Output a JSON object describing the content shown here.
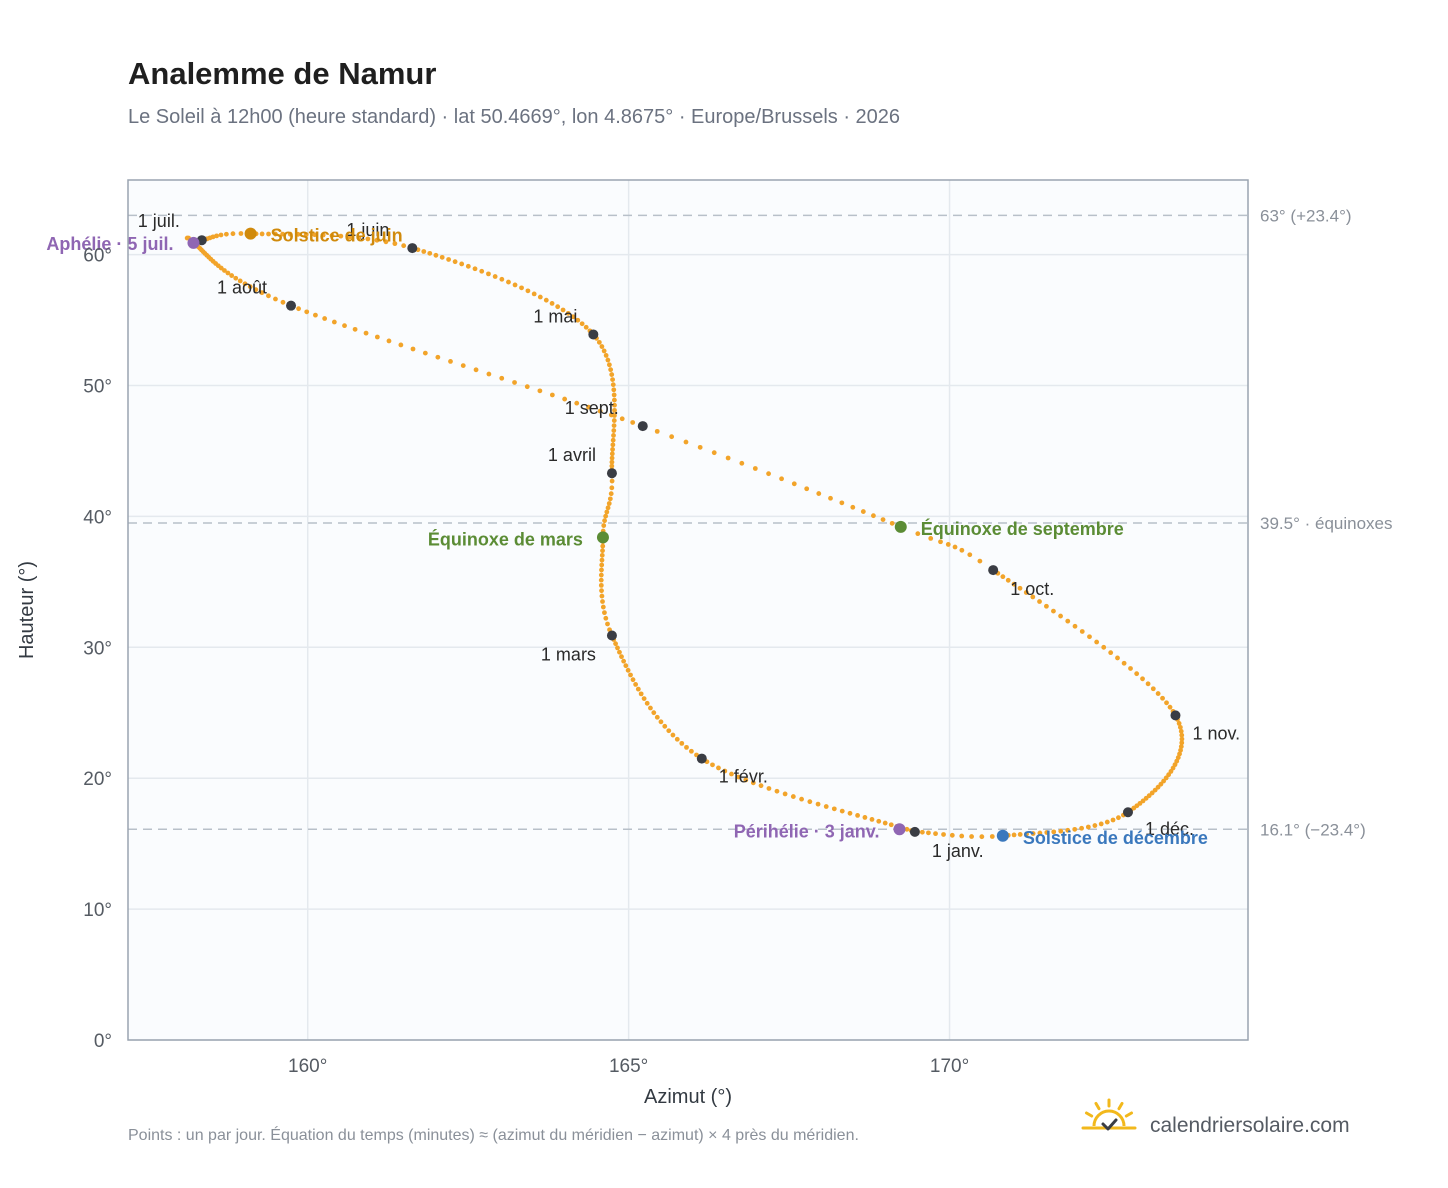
{
  "title": "Analemme de Namur",
  "subtitle": "Le Soleil à 12h00 (heure standard) · lat 50.4669°, lon 4.8675° · Europe/Brussels · 2026",
  "footnote": "Points : un par jour. Équation du temps (minutes) ≈ (azimut du méridien − azimut) × 4 près du méridien.",
  "brand": "calendriersolaire.com",
  "colors": {
    "path": "#f2a42a",
    "month_dot": "#3a3d44",
    "solstice_june": "#d08a0c",
    "solstice_december": "#3a78bd",
    "equinox": "#5b8c35",
    "perihelion_aphelion": "#8f66b3",
    "reference_line": "#b8c0c9",
    "plot_background": "#fafcfe",
    "grid": "#e4e9ee",
    "frame": "#9aa4b0",
    "brand_icon": "#f2b81c"
  },
  "chart_data": {
    "type": "scatter",
    "xlabel": "Azimut (°)",
    "ylabel": "Hauteur (°)",
    "xlim": [
      157.2,
      174.65
    ],
    "ylim": [
      0,
      65.7
    ],
    "x_ticks": [
      {
        "value": 160,
        "label": "160°"
      },
      {
        "value": 165,
        "label": "165°"
      },
      {
        "value": 170,
        "label": "170°"
      }
    ],
    "y_ticks": [
      {
        "value": 0,
        "label": "0°"
      },
      {
        "value": 10,
        "label": "10°"
      },
      {
        "value": 20,
        "label": "20°"
      },
      {
        "value": 30,
        "label": "30°"
      },
      {
        "value": 40,
        "label": "40°"
      },
      {
        "value": 50,
        "label": "50°"
      },
      {
        "value": 60,
        "label": "60°"
      }
    ],
    "grid": true,
    "path_note": "Points : un par jour",
    "daily_path_anchors": [
      {
        "doy": 1,
        "x": 169.46,
        "y": 15.9
      },
      {
        "doy": 32,
        "x": 166.14,
        "y": 21.5
      },
      {
        "doy": 60,
        "x": 164.74,
        "y": 30.9
      },
      {
        "doy": 79,
        "x": 164.6,
        "y": 38.4
      },
      {
        "doy": 91,
        "x": 164.74,
        "y": 43.3
      },
      {
        "doy": 121,
        "x": 164.45,
        "y": 53.9
      },
      {
        "doy": 152,
        "x": 161.63,
        "y": 60.5
      },
      {
        "doy": 172,
        "x": 159.11,
        "y": 61.6
      },
      {
        "doy": 182,
        "x": 158.35,
        "y": 61.1
      },
      {
        "doy": 186,
        "x": 158.22,
        "y": 60.9
      },
      {
        "doy": 213,
        "x": 159.74,
        "y": 56.1
      },
      {
        "doy": 244,
        "x": 165.22,
        "y": 46.9
      },
      {
        "doy": 265,
        "x": 169.24,
        "y": 39.2
      },
      {
        "doy": 274,
        "x": 170.68,
        "y": 35.9
      },
      {
        "doy": 305,
        "x": 173.52,
        "y": 24.8
      },
      {
        "doy": 335,
        "x": 172.78,
        "y": 17.4
      },
      {
        "doy": 355,
        "x": 170.83,
        "y": 15.6
      },
      {
        "doy": 365,
        "x": 169.5,
        "y": 15.9
      }
    ],
    "months": [
      {
        "label": "1 janv.",
        "x": 169.46,
        "y": 15.9
      },
      {
        "label": "1 févr.",
        "x": 166.14,
        "y": 21.5
      },
      {
        "label": "1 mars",
        "x": 164.74,
        "y": 30.9
      },
      {
        "label": "1 avril",
        "x": 164.74,
        "y": 43.3
      },
      {
        "label": "1 mai",
        "x": 164.45,
        "y": 53.9
      },
      {
        "label": "1 juin",
        "x": 161.63,
        "y": 60.5
      },
      {
        "label": "1 juil.",
        "x": 158.35,
        "y": 61.1
      },
      {
        "label": "1 août",
        "x": 159.74,
        "y": 56.1
      },
      {
        "label": "1 sept.",
        "x": 165.22,
        "y": 46.9
      },
      {
        "label": "1 oct.",
        "x": 170.68,
        "y": 35.9
      },
      {
        "label": "1 nov.",
        "x": 173.52,
        "y": 24.8
      },
      {
        "label": "1 déc.",
        "x": 172.78,
        "y": 17.4
      }
    ],
    "events": [
      {
        "label": "Solstice de juin",
        "x": 159.11,
        "y": 61.6,
        "color_key": "solstice_june"
      },
      {
        "label": "Aphélie · 5 juil.",
        "x": 158.22,
        "y": 60.9,
        "color_key": "perihelion_aphelion"
      },
      {
        "label": "Équinoxe de mars",
        "x": 164.6,
        "y": 38.4,
        "color_key": "equinox"
      },
      {
        "label": "Équinoxe de septembre",
        "x": 169.24,
        "y": 39.2,
        "color_key": "equinox"
      },
      {
        "label": "Périhélie · 3 janv.",
        "x": 169.22,
        "y": 16.1,
        "color_key": "perihelion_aphelion"
      },
      {
        "label": "Solstice de décembre",
        "x": 170.83,
        "y": 15.6,
        "color_key": "solstice_december"
      }
    ],
    "reference_lines": [
      {
        "y": 63,
        "label": "63° (+23.4°)"
      },
      {
        "y": 39.5,
        "label": "39.5° · équinoxes"
      },
      {
        "y": 16.1,
        "label": "16.1° (−23.4°)"
      }
    ]
  }
}
